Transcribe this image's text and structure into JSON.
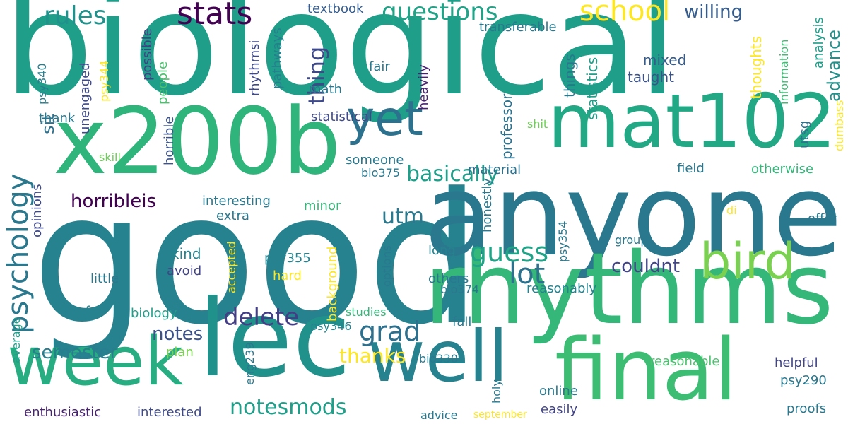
{
  "words": [
    {
      "text": "biological",
      "color": "#1f9e89"
    },
    {
      "text": "good",
      "color": "#26828e"
    },
    {
      "text": "anyone",
      "color": "#2a788e"
    },
    {
      "text": "rhythms",
      "color": "#35b779"
    },
    {
      "text": "x200b",
      "color": "#2fb47c"
    },
    {
      "text": "lec",
      "color": "#21918c"
    },
    {
      "text": "mat102",
      "color": "#22a884"
    },
    {
      "text": "week",
      "color": "#27ad81"
    },
    {
      "text": "well",
      "color": "#26828e"
    },
    {
      "text": "final",
      "color": "#3dbc74"
    },
    {
      "text": "bird",
      "color": "#7ad151"
    },
    {
      "text": "yet",
      "color": "#2c728e"
    },
    {
      "text": "stats",
      "color": "#440154"
    },
    {
      "text": "school",
      "color": "#fde725"
    },
    {
      "text": "questions",
      "color": "#20a386"
    },
    {
      "text": "rules",
      "color": "#21918c"
    },
    {
      "text": "psychology",
      "color": "#2a788e"
    },
    {
      "text": "delete",
      "color": "#433e85"
    },
    {
      "text": "grad",
      "color": "#2d708e"
    },
    {
      "text": "lot",
      "color": "#2c728e"
    },
    {
      "text": "guess",
      "color": "#20a386"
    },
    {
      "text": "basically",
      "color": "#1f9e89"
    },
    {
      "text": "notesmods",
      "color": "#1f9e89"
    },
    {
      "text": "willing",
      "color": "#365c8d"
    },
    {
      "text": "utm",
      "color": "#2a788e"
    },
    {
      "text": "horribleis",
      "color": "#440154"
    },
    {
      "text": "thing",
      "color": "#3e4989"
    },
    {
      "text": "semester",
      "color": "#287d8e"
    },
    {
      "text": "notes",
      "color": "#3b528b"
    },
    {
      "text": "thanks",
      "color": "#fde725"
    },
    {
      "text": "couldnt",
      "color": "#414487"
    },
    {
      "text": "advance",
      "color": "#21918c"
    },
    {
      "text": "sit",
      "color": "#2d708e"
    },
    {
      "text": "textbook",
      "color": "#365c8d"
    },
    {
      "text": "rhythmsi",
      "color": "#3e4989"
    },
    {
      "text": "possible",
      "color": "#424086"
    },
    {
      "text": "people",
      "color": "#4ac16d"
    },
    {
      "text": "pathways",
      "color": "#277f8e"
    },
    {
      "text": "mixed",
      "color": "#365c8d"
    },
    {
      "text": "taught",
      "color": "#3b528b"
    },
    {
      "text": "math",
      "color": "#2a788e"
    },
    {
      "text": "statistical",
      "color": "#3e4989"
    },
    {
      "text": "statistics",
      "color": "#1f9e89"
    },
    {
      "text": "things",
      "color": "#2a788e"
    },
    {
      "text": "transferable",
      "color": "#2a788e"
    },
    {
      "text": "heavily",
      "color": "#482173"
    },
    {
      "text": "professor",
      "color": "#2c728e"
    },
    {
      "text": "fair",
      "color": "#2a788e"
    },
    {
      "text": "thoughts",
      "color": "#fde725"
    },
    {
      "text": "information",
      "color": "#3dbc74"
    },
    {
      "text": "analysis",
      "color": "#1f9e89"
    },
    {
      "text": "psy340",
      "color": "#287d8e"
    },
    {
      "text": "psy344",
      "color": "#fde725"
    },
    {
      "text": "unengaged",
      "color": "#3e4989"
    },
    {
      "text": "thank",
      "color": "#2a788e"
    },
    {
      "text": "horrible",
      "color": "#3b528b"
    },
    {
      "text": "skill",
      "color": "#6ece58"
    },
    {
      "text": "material",
      "color": "#2c728e"
    },
    {
      "text": "field",
      "color": "#2a788e"
    },
    {
      "text": "otherwise",
      "color": "#35b779"
    },
    {
      "text": "utsg",
      "color": "#2c728e"
    },
    {
      "text": "dumbass",
      "color": "#fde725"
    },
    {
      "text": "interesting",
      "color": "#2a788e"
    },
    {
      "text": "extra",
      "color": "#2a788e"
    },
    {
      "text": "minor",
      "color": "#35b779"
    },
    {
      "text": "someone",
      "color": "#2a788e"
    },
    {
      "text": "bio375",
      "color": "#2a788e"
    },
    {
      "text": "honestly",
      "color": "#2a788e"
    },
    {
      "text": "shit",
      "color": "#6ece58"
    },
    {
      "text": "opinions",
      "color": "#3e4989"
    },
    {
      "text": "kind",
      "color": "#26828e"
    },
    {
      "text": "avoid",
      "color": "#414487"
    },
    {
      "text": "psy355",
      "color": "#26828e"
    },
    {
      "text": "little",
      "color": "#2a788e"
    },
    {
      "text": "hard",
      "color": "#fde725"
    },
    {
      "text": "accepted",
      "color": "#fde725"
    },
    {
      "text": "background",
      "color": "#fde725"
    },
    {
      "text": "options",
      "color": "#2a788e"
    },
    {
      "text": "long",
      "color": "#26828e"
    },
    {
      "text": "others",
      "color": "#2a788e"
    },
    {
      "text": "reasonably",
      "color": "#26828e"
    },
    {
      "text": "bio374",
      "color": "#2a788e"
    },
    {
      "text": "psy354",
      "color": "#2a788e"
    },
    {
      "text": "group",
      "color": "#2a788e"
    },
    {
      "text": "offer",
      "color": "#2a788e"
    },
    {
      "text": "di",
      "color": "#fde725"
    },
    {
      "text": "average",
      "color": "#1f9e89"
    },
    {
      "text": "awful",
      "color": "#26828e"
    },
    {
      "text": "biology",
      "color": "#1f9e89"
    },
    {
      "text": "studies",
      "color": "#35b779"
    },
    {
      "text": "psy346",
      "color": "#26828e"
    },
    {
      "text": "fall",
      "color": "#2a788e"
    },
    {
      "text": "plan",
      "color": "#7ad151"
    },
    {
      "text": "eng239",
      "color": "#2a788e"
    },
    {
      "text": "bio330",
      "color": "#2a788e"
    },
    {
      "text": "holy",
      "color": "#2a788e"
    },
    {
      "text": "reasonable",
      "color": "#4ac16d"
    },
    {
      "text": "helpful",
      "color": "#414487"
    },
    {
      "text": "psy290",
      "color": "#2a788e"
    },
    {
      "text": "online",
      "color": "#2a788e"
    },
    {
      "text": "easily",
      "color": "#414487"
    },
    {
      "text": "enthusiastic",
      "color": "#482173"
    },
    {
      "text": "interested",
      "color": "#3e4989"
    },
    {
      "text": "advice",
      "color": "#2a788e"
    },
    {
      "text": "september",
      "color": "#fde725"
    },
    {
      "text": "proofs",
      "color": "#2a788e"
    }
  ]
}
